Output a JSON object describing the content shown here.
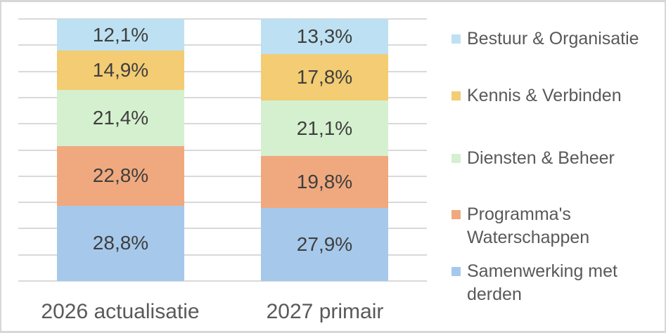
{
  "chart_data": {
    "type": "bar",
    "subtype": "stacked-100-percent-column",
    "title": "",
    "xlabel": "",
    "ylabel": "",
    "ylim": [
      0,
      100
    ],
    "grid": "horizontal, every 10%",
    "legend_position": "right",
    "value_format": "dutch-comma-percent",
    "categories": [
      "2026 actualisatie",
      "2027 primair"
    ],
    "series": [
      {
        "name": "Bestuur & Organisatie",
        "color": "#BDE1F2",
        "values": [
          12.1,
          13.3
        ],
        "labels": [
          "12,1%",
          "13,3%"
        ]
      },
      {
        "name": "Kennis & Verbinden",
        "color": "#F3CC73",
        "values": [
          14.9,
          17.8
        ],
        "labels": [
          "14,9%",
          "17,8%"
        ]
      },
      {
        "name": "Diensten & Beheer",
        "color": "#D5F0CE",
        "values": [
          21.4,
          21.1
        ],
        "labels": [
          "21,4%",
          "21,1%"
        ]
      },
      {
        "name": "Programma's Waterschappen",
        "color": "#F0A97E",
        "values": [
          22.8,
          19.8
        ],
        "labels": [
          "22,8%",
          "19,8%"
        ]
      },
      {
        "name": "Samenwerking met derden",
        "color": "#A6C9EB",
        "values": [
          28.8,
          27.9
        ],
        "labels": [
          "28,8%",
          "27,9%"
        ]
      }
    ],
    "colors": {
      "gridline": "#D9D9D9",
      "data_label_text": "#3F3F3F",
      "axis_text": "#595959",
      "legend_text": "#595959",
      "background": "#FFFFFF",
      "frame_border": "#D7D7D7"
    }
  }
}
